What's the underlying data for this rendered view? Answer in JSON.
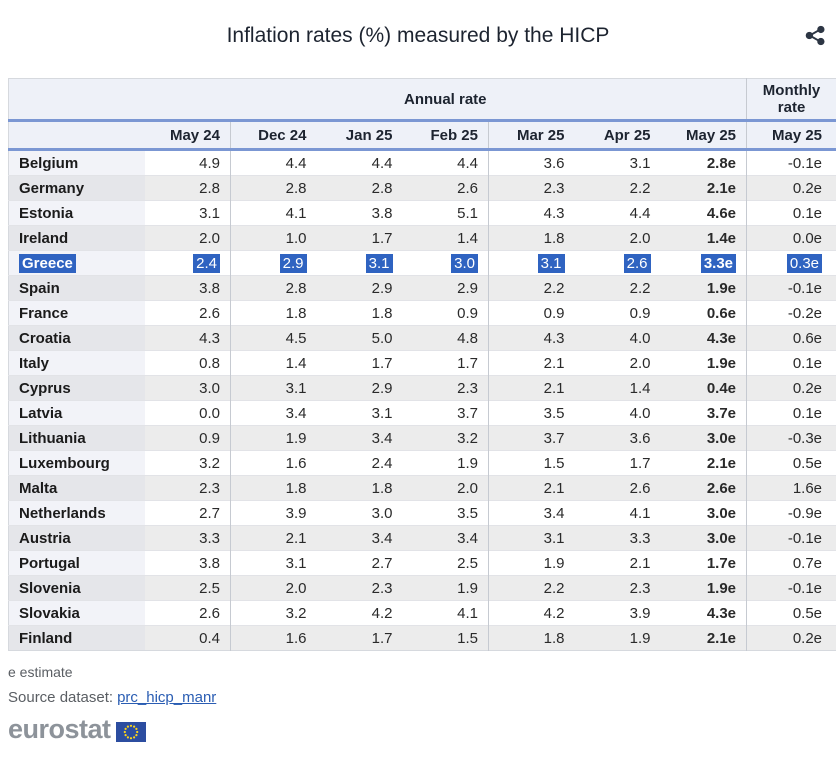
{
  "title": "Inflation rates (%) measured by the HICP",
  "share_icon": "share-icon",
  "colors": {
    "header_bg": "#eef1f8",
    "rule_blue": "#7b97d3",
    "selection_blue": "#2f63c1",
    "link_blue": "#2a5db3",
    "row_alt_gray": "#ececec",
    "logo_gray": "#8d939a",
    "flag_blue": "#2c4da0",
    "flag_star_yellow": "#ffd617"
  },
  "table": {
    "annual_label": "Annual rate",
    "monthly_label": "Monthly rate",
    "columns": [
      "May 24",
      "Dec 24",
      "Jan 25",
      "Feb 25",
      "Mar 25",
      "Apr 25",
      "May 25"
    ],
    "monthly_column": "May 25",
    "estimate_suffix": "e",
    "rows": [
      {
        "country": "Belgium",
        "values": [
          "4.9",
          "4.4",
          "4.4",
          "4.4",
          "3.6",
          "3.1",
          "2.8e"
        ],
        "monthly": "-0.1e",
        "selected": false
      },
      {
        "country": "Germany",
        "values": [
          "2.8",
          "2.8",
          "2.8",
          "2.6",
          "2.3",
          "2.2",
          "2.1e"
        ],
        "monthly": "0.2e",
        "selected": false
      },
      {
        "country": "Estonia",
        "values": [
          "3.1",
          "4.1",
          "3.8",
          "5.1",
          "4.3",
          "4.4",
          "4.6e"
        ],
        "monthly": "0.1e",
        "selected": false
      },
      {
        "country": "Ireland",
        "values": [
          "2.0",
          "1.0",
          "1.7",
          "1.4",
          "1.8",
          "2.0",
          "1.4e"
        ],
        "monthly": "0.0e",
        "selected": false
      },
      {
        "country": "Greece",
        "values": [
          "2.4",
          "2.9",
          "3.1",
          "3.0",
          "3.1",
          "2.6",
          "3.3e"
        ],
        "monthly": "0.3e",
        "selected": true
      },
      {
        "country": "Spain",
        "values": [
          "3.8",
          "2.8",
          "2.9",
          "2.9",
          "2.2",
          "2.2",
          "1.9e"
        ],
        "monthly": "-0.1e",
        "selected": false
      },
      {
        "country": "France",
        "values": [
          "2.6",
          "1.8",
          "1.8",
          "0.9",
          "0.9",
          "0.9",
          "0.6e"
        ],
        "monthly": "-0.2e",
        "selected": false
      },
      {
        "country": "Croatia",
        "values": [
          "4.3",
          "4.5",
          "5.0",
          "4.8",
          "4.3",
          "4.0",
          "4.3e"
        ],
        "monthly": "0.6e",
        "selected": false
      },
      {
        "country": "Italy",
        "values": [
          "0.8",
          "1.4",
          "1.7",
          "1.7",
          "2.1",
          "2.0",
          "1.9e"
        ],
        "monthly": "0.1e",
        "selected": false
      },
      {
        "country": "Cyprus",
        "values": [
          "3.0",
          "3.1",
          "2.9",
          "2.3",
          "2.1",
          "1.4",
          "0.4e"
        ],
        "monthly": "0.2e",
        "selected": false
      },
      {
        "country": "Latvia",
        "values": [
          "0.0",
          "3.4",
          "3.1",
          "3.7",
          "3.5",
          "4.0",
          "3.7e"
        ],
        "monthly": "0.1e",
        "selected": false
      },
      {
        "country": "Lithuania",
        "values": [
          "0.9",
          "1.9",
          "3.4",
          "3.2",
          "3.7",
          "3.6",
          "3.0e"
        ],
        "monthly": "-0.3e",
        "selected": false
      },
      {
        "country": "Luxembourg",
        "values": [
          "3.2",
          "1.6",
          "2.4",
          "1.9",
          "1.5",
          "1.7",
          "2.1e"
        ],
        "monthly": "0.5e",
        "selected": false
      },
      {
        "country": "Malta",
        "values": [
          "2.3",
          "1.8",
          "1.8",
          "2.0",
          "2.1",
          "2.6",
          "2.6e"
        ],
        "monthly": "1.6e",
        "selected": false
      },
      {
        "country": "Netherlands",
        "values": [
          "2.7",
          "3.9",
          "3.0",
          "3.5",
          "3.4",
          "4.1",
          "3.0e"
        ],
        "monthly": "-0.9e",
        "selected": false
      },
      {
        "country": "Austria",
        "values": [
          "3.3",
          "2.1",
          "3.4",
          "3.4",
          "3.1",
          "3.3",
          "3.0e"
        ],
        "monthly": "-0.1e",
        "selected": false
      },
      {
        "country": "Portugal",
        "values": [
          "3.8",
          "3.1",
          "2.7",
          "2.5",
          "1.9",
          "2.1",
          "1.7e"
        ],
        "monthly": "0.7e",
        "selected": false
      },
      {
        "country": "Slovenia",
        "values": [
          "2.5",
          "2.0",
          "2.3",
          "1.9",
          "2.2",
          "2.3",
          "1.9e"
        ],
        "monthly": "-0.1e",
        "selected": false
      },
      {
        "country": "Slovakia",
        "values": [
          "2.6",
          "3.2",
          "4.2",
          "4.1",
          "4.2",
          "3.9",
          "4.3e"
        ],
        "monthly": "0.5e",
        "selected": false
      },
      {
        "country": "Finland",
        "values": [
          "0.4",
          "1.6",
          "1.7",
          "1.5",
          "1.8",
          "1.9",
          "2.1e"
        ],
        "monthly": "0.2e",
        "selected": false
      }
    ]
  },
  "footnote": "e estimate",
  "source": {
    "label": "Source dataset:",
    "link_text": "prc_hicp_manr"
  },
  "logo": {
    "text": "eurostat"
  }
}
